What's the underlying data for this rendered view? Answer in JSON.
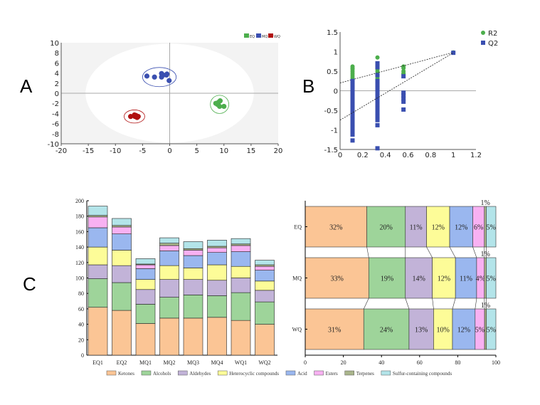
{
  "panel_letters": {
    "a": "A",
    "b": "B",
    "c": "C"
  },
  "chart_data": [
    {
      "type": "scatter",
      "panel": "A",
      "xlim": [
        -20,
        20
      ],
      "ylim": [
        -10,
        10
      ],
      "xticks": [
        -20,
        -15,
        -10,
        -5,
        0,
        5,
        10,
        15,
        20
      ],
      "yticks": [
        -10,
        -8,
        -6,
        -4,
        -2,
        0,
        2,
        4,
        6,
        8,
        10
      ],
      "legend": {
        "placement": "top-right",
        "entries": [
          "EQ",
          "MQ",
          "WQ"
        ]
      },
      "confidence_ellipse": {
        "center": [
          0,
          0
        ],
        "radii": [
          15.5,
          9.8
        ]
      },
      "series": [
        {
          "name": "EQ",
          "color": "#4cae4c",
          "ellipse": {
            "center": [
              9.2,
              -2.2
            ],
            "radii": [
              1.7,
              1.8
            ]
          },
          "points": [
            [
              8.5,
              -2.0
            ],
            [
              9.0,
              -1.8
            ],
            [
              9.3,
              -1.5
            ],
            [
              8.8,
              -2.2
            ],
            [
              9.2,
              -2.6
            ],
            [
              10.0,
              -2.6
            ]
          ]
        },
        {
          "name": "MQ",
          "color": "#3a4fb0",
          "ellipse": {
            "center": [
              -1.9,
              3.2
            ],
            "radii": [
              3.1,
              1.9
            ]
          },
          "points": [
            [
              -4.2,
              3.4
            ],
            [
              -2.8,
              3.2
            ],
            [
              -1.5,
              3.9
            ],
            [
              -1.5,
              3.2
            ],
            [
              -1.2,
              3.6
            ],
            [
              -0.6,
              3.6
            ],
            [
              -0.5,
              3.8
            ],
            [
              -0.1,
              2.5
            ]
          ]
        },
        {
          "name": "WQ",
          "color": "#b01010",
          "ellipse": {
            "center": [
              -6.5,
              -4.6
            ],
            "radii": [
              1.9,
              1.3
            ]
          },
          "points": [
            [
              -7.2,
              -4.6
            ],
            [
              -6.5,
              -4.3
            ],
            [
              -6.2,
              -4.4
            ],
            [
              -6.0,
              -4.8
            ],
            [
              -5.8,
              -4.6
            ],
            [
              -6.4,
              -4.6
            ]
          ]
        }
      ]
    },
    {
      "type": "scatter",
      "panel": "B",
      "xlim": [
        0,
        1.2
      ],
      "ylim": [
        -1.5,
        1.5
      ],
      "xticks": [
        0,
        0.2,
        0.4,
        0.6,
        0.8,
        1,
        1.2
      ],
      "yticks": [
        -1.5,
        -1,
        -0.5,
        0,
        0.5,
        1,
        1.5
      ],
      "legend": {
        "placement": "top-right",
        "entries": [
          "R2",
          "Q2"
        ]
      },
      "series": [
        {
          "name": "R2",
          "color": "#4cae4c",
          "marker": "circle",
          "points": [
            [
              0.11,
              0.62
            ],
            [
              0.11,
              0.58
            ],
            [
              0.11,
              0.55
            ],
            [
              0.11,
              0.5
            ],
            [
              0.11,
              0.45
            ],
            [
              0.11,
              0.4
            ],
            [
              0.11,
              0.35
            ],
            [
              0.11,
              0.3
            ],
            [
              0.11,
              0.25
            ],
            [
              0.11,
              0.2
            ],
            [
              0.11,
              0.15
            ],
            [
              0.33,
              0.85
            ],
            [
              0.33,
              0.62
            ],
            [
              0.33,
              0.55
            ],
            [
              0.33,
              0.5
            ],
            [
              0.33,
              0.45
            ],
            [
              0.33,
              0.38
            ],
            [
              0.33,
              0.32
            ],
            [
              0.33,
              0.28
            ],
            [
              0.56,
              0.62
            ],
            [
              0.56,
              0.58
            ],
            [
              0.56,
              0.5
            ],
            [
              0.56,
              0.45
            ],
            [
              0.56,
              0.43
            ],
            [
              1,
              0.98
            ]
          ],
          "trend": {
            "intercept": 0.2,
            "end": [
              1,
              0.98
            ]
          }
        },
        {
          "name": "Q2",
          "color": "#3a4fb0",
          "marker": "square",
          "points": [
            [
              0.11,
              0.25
            ],
            [
              0.11,
              0.15
            ],
            [
              0.11,
              0.05
            ],
            [
              0.11,
              -0.05
            ],
            [
              0.11,
              -0.15
            ],
            [
              0.11,
              -0.25
            ],
            [
              0.11,
              -0.35
            ],
            [
              0.11,
              -0.45
            ],
            [
              0.11,
              -0.55
            ],
            [
              0.11,
              -0.65
            ],
            [
              0.11,
              -0.75
            ],
            [
              0.11,
              -0.85
            ],
            [
              0.11,
              -0.95
            ],
            [
              0.11,
              -1.05
            ],
            [
              0.11,
              -1.12
            ],
            [
              0.11,
              -1.27
            ],
            [
              0.33,
              0.7
            ],
            [
              0.33,
              0.6
            ],
            [
              0.33,
              0.4
            ],
            [
              0.33,
              0.25
            ],
            [
              0.33,
              0.15
            ],
            [
              0.33,
              0.05
            ],
            [
              0.33,
              -0.05
            ],
            [
              0.33,
              -0.15
            ],
            [
              0.33,
              -0.25
            ],
            [
              0.33,
              -0.35
            ],
            [
              0.33,
              -0.45
            ],
            [
              0.33,
              -0.55
            ],
            [
              0.33,
              -0.65
            ],
            [
              0.33,
              -0.75
            ],
            [
              0.33,
              -0.88
            ],
            [
              0.33,
              -1.47
            ],
            [
              0.56,
              0.37
            ],
            [
              0.56,
              -0.05
            ],
            [
              0.56,
              -0.12
            ],
            [
              0.56,
              -0.2
            ],
            [
              0.56,
              -0.28
            ],
            [
              0.56,
              -0.48
            ],
            [
              1,
              0.97
            ]
          ],
          "trend": {
            "intercept": -0.75,
            "end": [
              1,
              0.97
            ]
          }
        }
      ]
    },
    {
      "type": "bar",
      "stacked": true,
      "panel": "C",
      "categories": [
        "EQ1",
        "EQ2",
        "MQ1",
        "MQ2",
        "MQ3",
        "MQ4",
        "WQ1",
        "WQ2"
      ],
      "ylim": [
        0,
        200
      ],
      "yticks": [
        0,
        20,
        40,
        60,
        80,
        100,
        120,
        140,
        160,
        180,
        200
      ],
      "series": [
        {
          "name": "Ketones",
          "color": "#fbc595",
          "values": [
            62,
            58,
            41,
            48,
            48,
            49,
            45,
            40
          ]
        },
        {
          "name": "Alcohols",
          "color": "#9ed49a",
          "values": [
            37,
            36,
            25,
            27,
            30,
            28,
            36,
            29
          ]
        },
        {
          "name": "Aldehydes",
          "color": "#c2b3d8",
          "values": [
            18,
            22,
            19,
            23,
            20,
            20,
            19,
            15
          ]
        },
        {
          "name": "Heterocyclic compounds",
          "color": "#fdfc98",
          "values": [
            23,
            20,
            13,
            18,
            15,
            20,
            15,
            12
          ]
        },
        {
          "name": "Acid",
          "color": "#9ab7ef",
          "values": [
            25,
            21,
            14,
            19,
            16,
            16,
            19,
            14
          ]
        },
        {
          "name": "Esters",
          "color": "#f8b1f2",
          "values": [
            14,
            9,
            5,
            7,
            7,
            6,
            8,
            5
          ]
        },
        {
          "name": "Terpenes",
          "color": "#aab58b",
          "values": [
            2,
            2,
            1,
            3,
            2,
            2,
            2,
            2
          ]
        },
        {
          "name": "Sulfur-containing compounds",
          "color": "#b3e4e9",
          "values": [
            12,
            9,
            7,
            7,
            9,
            8,
            7,
            6
          ]
        }
      ],
      "legend": {
        "placement": "bottom"
      }
    },
    {
      "type": "bar",
      "stacked": true,
      "orientation": "horizontal",
      "percent": true,
      "panel": "C",
      "categories": [
        "EQ",
        "MQ",
        "WQ"
      ],
      "xlim": [
        0,
        100
      ],
      "xticks": [
        0,
        20,
        40,
        60,
        80,
        100
      ],
      "series": [
        {
          "name": "Ketones",
          "color": "#fbc595",
          "values": [
            32,
            33,
            31
          ],
          "labels": [
            "32%",
            "33%",
            "31%"
          ]
        },
        {
          "name": "Alcohols",
          "color": "#9ed49a",
          "values": [
            20,
            19,
            24
          ],
          "labels": [
            "20%",
            "19%",
            "24%"
          ]
        },
        {
          "name": "Aldehydes",
          "color": "#c2b3d8",
          "values": [
            11,
            14,
            13
          ],
          "labels": [
            "11%",
            "14%",
            "13%"
          ]
        },
        {
          "name": "Heterocyclic compounds",
          "color": "#fdfc98",
          "values": [
            12,
            12,
            10
          ],
          "labels": [
            "12%",
            "12%",
            "10%"
          ]
        },
        {
          "name": "Acid",
          "color": "#9ab7ef",
          "values": [
            12,
            11,
            12
          ],
          "labels": [
            "12%",
            "11%",
            "12%"
          ]
        },
        {
          "name": "Esters",
          "color": "#f8b1f2",
          "values": [
            6,
            4,
            5
          ],
          "labels": [
            "6%",
            "4%",
            "5%"
          ]
        },
        {
          "name": "Terpenes",
          "color": "#aab58b",
          "values": [
            1,
            1,
            1
          ],
          "labels": [
            "1%",
            "1%",
            "1%"
          ]
        },
        {
          "name": "Sulfur-containing compounds",
          "color": "#b3e4e9",
          "values": [
            5,
            5,
            5
          ],
          "labels": [
            "5%",
            "5%",
            "5%"
          ]
        }
      ]
    }
  ]
}
